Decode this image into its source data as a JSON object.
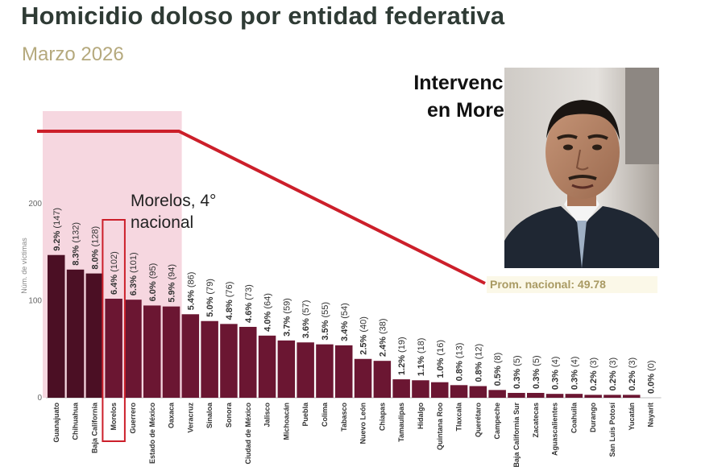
{
  "title": "Homicidio doloso por entidad federativa",
  "subtitle": "Marzo 2026",
  "inset": {
    "title_line1": "Intervención",
    "title_line2": "en Morelos"
  },
  "annotation": {
    "line1": "Morelos, 4°",
    "line2": "nacional"
  },
  "colors": {
    "bar": "#6b1632",
    "bar_highlight": "#4b0f24",
    "pink_band": "#f6d7e0",
    "red_line": "#cc1f2a",
    "avg_label": "#a99a63"
  },
  "chart_data": {
    "type": "bar",
    "title": "Homicidio doloso por entidad federativa",
    "ylabel": "Núm. de víctimas",
    "ylim": [
      0,
      250
    ],
    "yticks": [
      0,
      100,
      200
    ],
    "average": {
      "label": "Prom. nacional: 49.78",
      "value": 49.78
    },
    "highlight_category": "Morelos",
    "categories": [
      "Guanajuato",
      "Chihuahua",
      "Baja California",
      "Morelos",
      "Guerrero",
      "Estado de México",
      "Oaxaca",
      "Veracruz",
      "Sinaloa",
      "Sonora",
      "Ciudad de México",
      "Jalisco",
      "Michoacán",
      "Puebla",
      "Colima",
      "Tabasco",
      "Nuevo León",
      "Chiapas",
      "Tamaulipas",
      "Hidalgo",
      "Quintana Roo",
      "Tlaxcala",
      "Querétaro",
      "Campeche",
      "Baja California Sur",
      "Zacatecas",
      "Aguascalientes",
      "Coahuila",
      "Durango",
      "San Luis Potosí",
      "Yucatán",
      "Nayarit"
    ],
    "values": [
      147,
      132,
      128,
      102,
      101,
      95,
      94,
      86,
      79,
      76,
      73,
      64,
      59,
      57,
      55,
      54,
      40,
      38,
      19,
      18,
      16,
      13,
      12,
      8,
      5,
      5,
      4,
      4,
      3,
      3,
      3,
      0
    ],
    "percent_labels": [
      "9.2%",
      "8.3%",
      "8.0%",
      "6.4%",
      "6.3%",
      "6.0%",
      "5.9%",
      "5.4%",
      "5.0%",
      "4.8%",
      "4.6%",
      "4.0%",
      "3.7%",
      "3.6%",
      "3.5%",
      "3.4%",
      "2.5%",
      "2.4%",
      "1.2%",
      "1.1%",
      "1.0%",
      "0.8%",
      "0.8%",
      "0.5%",
      "0.3%",
      "0.3%",
      "0.3%",
      "0.3%",
      "0.2%",
      "0.2%",
      "0.2%",
      "0.0%"
    ]
  }
}
